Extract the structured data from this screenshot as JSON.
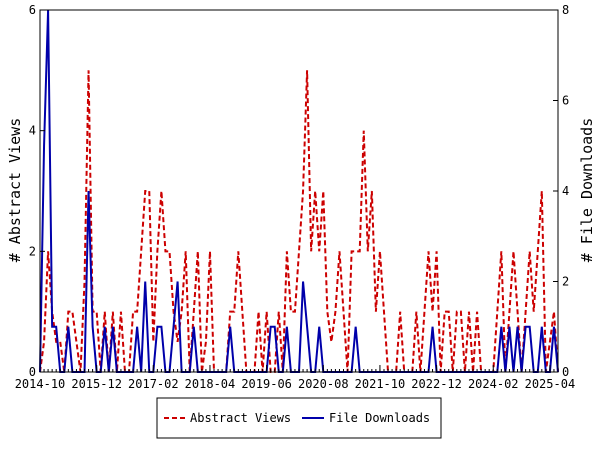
{
  "chart_data": {
    "type": "line",
    "title": "",
    "ylabel_left": "# Abstract Views",
    "ylabel_right": "# File Downloads",
    "ylim_left": [
      0,
      6
    ],
    "ylim_right": [
      0,
      8
    ],
    "yticks_left": [
      "0",
      "2",
      "4",
      "6"
    ],
    "yticks_right": [
      "0",
      "2",
      "4",
      "6",
      "8"
    ],
    "xlim": [
      "2014-10",
      "2025-06"
    ],
    "xticks": [
      "2014-10",
      "2015-12",
      "2017-02",
      "2018-04",
      "2019-06",
      "2020-08",
      "2021-10",
      "2022-12",
      "2024-02",
      "2025-04"
    ],
    "grid": false,
    "legend_position": "bottom",
    "series": [
      {
        "name": "Abstract Views",
        "axis": "left",
        "color": "#cc0000",
        "style": "dashed",
        "points": [
          [
            "2014-10",
            0
          ],
          [
            "2014-11",
            0.5
          ],
          [
            "2014-12",
            2
          ],
          [
            "2015-01",
            1
          ],
          [
            "2015-02",
            0.5
          ],
          [
            "2015-03",
            0.5
          ],
          [
            "2015-04",
            0
          ],
          [
            "2015-05",
            1
          ],
          [
            "2015-06",
            1
          ],
          [
            "2015-07",
            0.5
          ],
          [
            "2015-08",
            0
          ],
          [
            "2015-09",
            1.5
          ],
          [
            "2015-10",
            5
          ],
          [
            "2015-11",
            1
          ],
          [
            "2015-12",
            1
          ],
          [
            "2016-01",
            0
          ],
          [
            "2016-02",
            1
          ],
          [
            "2016-03",
            0
          ],
          [
            "2016-04",
            1
          ],
          [
            "2016-05",
            0
          ],
          [
            "2016-06",
            1
          ],
          [
            "2016-07",
            0
          ],
          [
            "2016-08",
            0
          ],
          [
            "2016-09",
            1
          ],
          [
            "2016-10",
            1
          ],
          [
            "2016-11",
            2
          ],
          [
            "2016-12",
            3
          ],
          [
            "2017-01",
            3
          ],
          [
            "2017-02",
            0.5
          ],
          [
            "2017-03",
            2
          ],
          [
            "2017-04",
            3
          ],
          [
            "2017-05",
            2
          ],
          [
            "2017-06",
            2
          ],
          [
            "2017-07",
            1
          ],
          [
            "2017-08",
            0.5
          ],
          [
            "2017-09",
            1
          ],
          [
            "2017-10",
            2
          ],
          [
            "2017-11",
            0
          ],
          [
            "2017-12",
            1
          ],
          [
            "2018-01",
            2
          ],
          [
            "2018-02",
            0
          ],
          [
            "2018-03",
            0.5
          ],
          [
            "2018-04",
            2
          ],
          [
            "2018-05",
            0
          ],
          [
            "2018-06",
            0
          ],
          [
            "2018-07",
            0
          ],
          [
            "2018-08",
            0
          ],
          [
            "2018-09",
            1
          ],
          [
            "2018-10",
            1
          ],
          [
            "2018-11",
            2
          ],
          [
            "2018-12",
            1
          ],
          [
            "2019-01",
            0
          ],
          [
            "2019-02",
            0
          ],
          [
            "2019-03",
            0
          ],
          [
            "2019-04",
            1
          ],
          [
            "2019-05",
            0
          ],
          [
            "2019-06",
            1
          ],
          [
            "2019-07",
            0
          ],
          [
            "2019-08",
            0
          ],
          [
            "2019-09",
            1
          ],
          [
            "2019-10",
            0
          ],
          [
            "2019-11",
            2
          ],
          [
            "2019-12",
            1
          ],
          [
            "2020-01",
            1
          ],
          [
            "2020-02",
            2
          ],
          [
            "2020-03",
            3
          ],
          [
            "2020-04",
            5
          ],
          [
            "2020-05",
            2
          ],
          [
            "2020-06",
            3
          ],
          [
            "2020-07",
            2
          ],
          [
            "2020-08",
            3
          ],
          [
            "2020-09",
            1
          ],
          [
            "2020-10",
            0.5
          ],
          [
            "2020-11",
            1
          ],
          [
            "2020-12",
            2
          ],
          [
            "2021-01",
            1
          ],
          [
            "2021-02",
            0
          ],
          [
            "2021-03",
            2
          ],
          [
            "2021-04",
            2
          ],
          [
            "2021-05",
            2
          ],
          [
            "2021-06",
            4
          ],
          [
            "2021-07",
            2
          ],
          [
            "2021-08",
            3
          ],
          [
            "2021-09",
            1
          ],
          [
            "2021-10",
            2
          ],
          [
            "2021-11",
            1
          ],
          [
            "2021-12",
            0
          ],
          [
            "2022-01",
            0
          ],
          [
            "2022-02",
            0
          ],
          [
            "2022-03",
            1
          ],
          [
            "2022-04",
            0
          ],
          [
            "2022-05",
            0
          ],
          [
            "2022-06",
            0
          ],
          [
            "2022-07",
            1
          ],
          [
            "2022-08",
            0
          ],
          [
            "2022-09",
            1
          ],
          [
            "2022-10",
            2
          ],
          [
            "2022-11",
            1
          ],
          [
            "2022-12",
            2
          ],
          [
            "2023-01",
            0
          ],
          [
            "2023-02",
            1
          ],
          [
            "2023-03",
            1
          ],
          [
            "2023-04",
            0
          ],
          [
            "2023-05",
            1
          ],
          [
            "2023-06",
            1
          ],
          [
            "2023-07",
            0
          ],
          [
            "2023-08",
            1
          ],
          [
            "2023-09",
            0
          ],
          [
            "2023-10",
            1
          ],
          [
            "2023-11",
            0
          ],
          [
            "2023-12",
            0
          ],
          [
            "2024-01",
            0
          ],
          [
            "2024-02",
            0
          ],
          [
            "2024-03",
            1
          ],
          [
            "2024-04",
            2
          ],
          [
            "2024-05",
            0
          ],
          [
            "2024-06",
            1
          ],
          [
            "2024-07",
            2
          ],
          [
            "2024-08",
            1
          ],
          [
            "2024-09",
            0
          ],
          [
            "2024-10",
            1
          ],
          [
            "2024-11",
            2
          ],
          [
            "2024-12",
            1
          ],
          [
            "2025-01",
            2
          ],
          [
            "2025-02",
            3
          ],
          [
            "2025-03",
            0
          ],
          [
            "2025-04",
            0.5
          ],
          [
            "2025-05",
            1
          ],
          [
            "2025-06",
            0
          ]
        ]
      },
      {
        "name": "File Downloads",
        "axis": "right",
        "color": "#0000aa",
        "style": "solid",
        "points": [
          [
            "2014-10",
            0
          ],
          [
            "2014-11",
            5
          ],
          [
            "2014-12",
            8
          ],
          [
            "2015-01",
            1
          ],
          [
            "2015-02",
            1
          ],
          [
            "2015-03",
            0
          ],
          [
            "2015-04",
            0
          ],
          [
            "2015-05",
            1
          ],
          [
            "2015-06",
            0
          ],
          [
            "2015-07",
            0
          ],
          [
            "2015-08",
            0
          ],
          [
            "2015-09",
            0
          ],
          [
            "2015-10",
            4
          ],
          [
            "2015-11",
            1
          ],
          [
            "2015-12",
            0
          ],
          [
            "2016-01",
            0
          ],
          [
            "2016-02",
            1
          ],
          [
            "2016-03",
            0
          ],
          [
            "2016-04",
            1
          ],
          [
            "2016-05",
            0
          ],
          [
            "2016-06",
            0
          ],
          [
            "2016-07",
            0
          ],
          [
            "2016-08",
            0
          ],
          [
            "2016-09",
            0
          ],
          [
            "2016-10",
            1
          ],
          [
            "2016-11",
            0
          ],
          [
            "2016-12",
            2
          ],
          [
            "2017-01",
            0
          ],
          [
            "2017-02",
            0
          ],
          [
            "2017-03",
            1
          ],
          [
            "2017-04",
            1
          ],
          [
            "2017-05",
            0
          ],
          [
            "2017-06",
            0
          ],
          [
            "2017-07",
            1
          ],
          [
            "2017-08",
            2
          ],
          [
            "2017-09",
            0
          ],
          [
            "2017-10",
            0
          ],
          [
            "2017-11",
            0
          ],
          [
            "2017-12",
            1
          ],
          [
            "2018-01",
            0
          ],
          [
            "2018-02",
            0
          ],
          [
            "2018-03",
            0
          ],
          [
            "2018-04",
            0
          ],
          [
            "2018-05",
            0
          ],
          [
            "2018-06",
            0
          ],
          [
            "2018-07",
            0
          ],
          [
            "2018-08",
            0
          ],
          [
            "2018-09",
            1
          ],
          [
            "2018-10",
            0
          ],
          [
            "2018-11",
            0
          ],
          [
            "2018-12",
            0
          ],
          [
            "2019-01",
            0
          ],
          [
            "2019-02",
            0
          ],
          [
            "2019-03",
            0
          ],
          [
            "2019-04",
            0
          ],
          [
            "2019-05",
            0
          ],
          [
            "2019-06",
            0
          ],
          [
            "2019-07",
            1
          ],
          [
            "2019-08",
            1
          ],
          [
            "2019-09",
            0
          ],
          [
            "2019-10",
            0
          ],
          [
            "2019-11",
            1
          ],
          [
            "2019-12",
            0
          ],
          [
            "2020-01",
            0
          ],
          [
            "2020-02",
            0
          ],
          [
            "2020-03",
            2
          ],
          [
            "2020-04",
            1
          ],
          [
            "2020-05",
            0
          ],
          [
            "2020-06",
            0
          ],
          [
            "2020-07",
            1
          ],
          [
            "2020-08",
            0
          ],
          [
            "2020-09",
            0
          ],
          [
            "2020-10",
            0
          ],
          [
            "2020-11",
            0
          ],
          [
            "2020-12",
            0
          ],
          [
            "2021-01",
            0
          ],
          [
            "2021-02",
            0
          ],
          [
            "2021-03",
            0
          ],
          [
            "2021-04",
            1
          ],
          [
            "2021-05",
            0
          ],
          [
            "2021-06",
            0
          ],
          [
            "2021-07",
            0
          ],
          [
            "2021-08",
            0
          ],
          [
            "2021-09",
            0
          ],
          [
            "2021-10",
            0
          ],
          [
            "2021-11",
            0
          ],
          [
            "2021-12",
            0
          ],
          [
            "2022-01",
            0
          ],
          [
            "2022-02",
            0
          ],
          [
            "2022-03",
            0
          ],
          [
            "2022-04",
            0
          ],
          [
            "2022-05",
            0
          ],
          [
            "2022-06",
            0
          ],
          [
            "2022-07",
            0
          ],
          [
            "2022-08",
            0
          ],
          [
            "2022-09",
            0
          ],
          [
            "2022-10",
            0
          ],
          [
            "2022-11",
            1
          ],
          [
            "2022-12",
            0
          ],
          [
            "2023-01",
            0
          ],
          [
            "2023-02",
            0
          ],
          [
            "2023-03",
            0
          ],
          [
            "2023-04",
            0
          ],
          [
            "2023-05",
            0
          ],
          [
            "2023-06",
            0
          ],
          [
            "2023-07",
            0
          ],
          [
            "2023-08",
            0
          ],
          [
            "2023-09",
            0
          ],
          [
            "2023-10",
            0
          ],
          [
            "2023-11",
            0
          ],
          [
            "2023-12",
            0
          ],
          [
            "2024-01",
            0
          ],
          [
            "2024-02",
            0
          ],
          [
            "2024-03",
            0
          ],
          [
            "2024-04",
            1
          ],
          [
            "2024-05",
            0
          ],
          [
            "2024-06",
            1
          ],
          [
            "2024-07",
            0
          ],
          [
            "2024-08",
            1
          ],
          [
            "2024-09",
            0
          ],
          [
            "2024-10",
            1
          ],
          [
            "2024-11",
            1
          ],
          [
            "2024-12",
            0
          ],
          [
            "2025-01",
            0
          ],
          [
            "2025-02",
            1
          ],
          [
            "2025-03",
            0
          ],
          [
            "2025-04",
            0
          ],
          [
            "2025-05",
            1
          ],
          [
            "2025-06",
            0
          ]
        ]
      }
    ]
  }
}
